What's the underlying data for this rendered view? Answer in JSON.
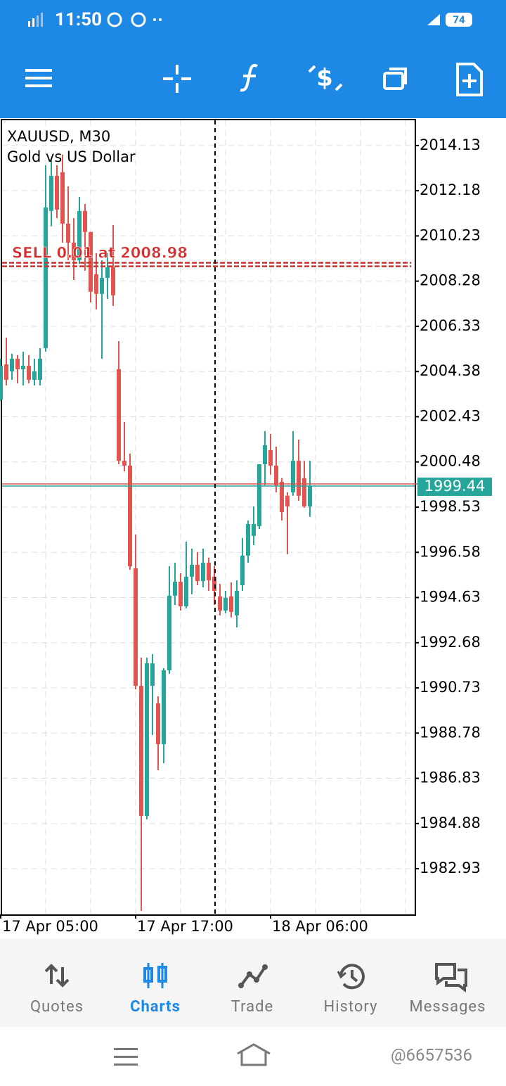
{
  "status_bar": {
    "time": "11:50",
    "battery": "74"
  },
  "chart_data": {
    "type": "candlestick",
    "title": "XAUUSD, M30",
    "subtitle": "Gold vs US Dollar",
    "categories": [
      "17 Apr 05:00",
      null,
      null,
      null,
      null,
      null,
      null,
      null,
      null,
      null,
      null,
      null,
      null,
      null,
      null,
      null,
      null,
      null,
      null,
      null,
      null,
      null,
      null,
      null,
      "17 Apr 17:00",
      null,
      null,
      null,
      null,
      null,
      null,
      null,
      null,
      null,
      null,
      null,
      null,
      null,
      null,
      null,
      null,
      null,
      null,
      null,
      null,
      null,
      null,
      null,
      "18 Apr 06:00",
      null,
      null,
      null,
      null,
      null,
      null,
      null
    ],
    "open": [
      2003.17,
      2004.69,
      2004.39,
      2004.93,
      2004.48,
      2004.63,
      2004.02,
      2004.02,
      2005.39,
      2011.31,
      2012.82,
      2012.98,
      2010.76,
      2009.94,
      2009.18,
      2011.31,
      2010.4,
      2008.58,
      2007.73,
      2008.42,
      2008.88,
      2004.48,
      2000.53,
      2000.32,
      1995.89,
      1990.82,
      1985.21,
      1990.82,
      1990.06,
      1988.3,
      1991.49,
      1994.71,
      1995.31,
      1994.25,
      1995.53,
      1996.04,
      1995.34,
      1996.13,
      1995.53,
      1994.68,
      1994.07,
      1994.68,
      1993.86,
      1995.16,
      1996.44,
      1997.29,
      1997.71,
      2000.38,
      2000.99,
      2000.32,
      1999.62,
      1999.02,
      1999.17,
      2000.53,
      1999.78,
      1998.56
    ],
    "high": [
      2004.93,
      2005.84,
      2005.15,
      2005.09,
      2005.24,
      2005.09,
      2004.93,
      2005.39,
      2013.28,
      2013.49,
      2013.28,
      2013.74,
      2012.37,
      2011.0,
      2011.91,
      2011.61,
      2010.4,
      2009.49,
      2009.18,
      2009.49,
      2010.7,
      2005.69,
      2002.2,
      2000.84,
      1997.35,
      1992.04,
      1992.04,
      1992.19,
      1990.37,
      1991.58,
      1995.98,
      1996.13,
      1995.68,
      1997.04,
      1996.74,
      1996.59,
      1996.74,
      1996.35,
      1995.98,
      1995.22,
      1994.92,
      1995.28,
      1995.37,
      1997.2,
      1997.95,
      1998.56,
      2000.38,
      2001.81,
      2001.69,
      2001.14,
      1999.78,
      1999.17,
      2001.81,
      2001.44,
      2000.53,
      2000.53
    ],
    "low": [
      2003.11,
      2003.78,
      2004.02,
      2003.87,
      2003.78,
      2003.87,
      2003.78,
      2003.78,
      2005.24,
      2010.64,
      2011.0,
      2009.94,
      2009.18,
      2008.33,
      2009.03,
      2008.73,
      2007.36,
      2007.06,
      2004.93,
      2007.51,
      2007.21,
      2000.38,
      2000.08,
      1995.83,
      1990.67,
      1981.11,
      1985.06,
      1988.7,
      1987.18,
      1987.48,
      1991.34,
      1994.31,
      1994.07,
      1994.16,
      1994.77,
      1995.16,
      1995.07,
      1994.92,
      1994.31,
      1993.86,
      1993.95,
      1993.77,
      1993.34,
      1994.92,
      1996.13,
      1996.89,
      1997.59,
      1999.47,
      1999.93,
      1999.17,
      1997.95,
      1996.5,
      1999.02,
      1998.8,
      1998.5,
      1998.11
    ],
    "close": [
      2004.63,
      2004.02,
      2004.93,
      2004.48,
      2004.63,
      2004.02,
      2004.39,
      2004.93,
      2011.46,
      2012.82,
      2011.37,
      2010.76,
      2009.94,
      2009.18,
      2011.31,
      2010.4,
      2007.82,
      2007.73,
      2008.42,
      2008.88,
      2007.67,
      2000.53,
      2000.32,
      1995.98,
      1990.82,
      1985.21,
      1991.79,
      1991.79,
      1988.3,
      1991.49,
      1994.71,
      1995.31,
      1994.25,
      1995.53,
      1996.04,
      1995.34,
      1996.13,
      1995.37,
      1994.92,
      1994.07,
      1994.62,
      1994.01,
      1994.92,
      1996.44,
      1997.8,
      1997.8,
      2000.38,
      2001.2,
      2000.32,
      1999.47,
      1998.32,
      1998.56,
      2000.53,
      1999.02,
      1998.56,
      1999.44
    ],
    "up_color": "#26a69a",
    "down_color": "#e0554f",
    "ylim": [
      1980.96,
      2015.25
    ],
    "yticks": [
      2014.13,
      2012.18,
      2010.23,
      2008.28,
      2006.33,
      2004.38,
      2002.43,
      2000.48,
      1998.53,
      1996.58,
      1994.63,
      1992.68,
      1990.73,
      1988.78,
      1986.83,
      1984.88,
      1982.93
    ],
    "grid": true,
    "order_line": {
      "label": "SELL 0.01 at 2008.98",
      "value": 2008.98,
      "color": "#d32f2f"
    },
    "last_price": 1999.44
  },
  "nav": {
    "tabs": [
      "Quotes",
      "Charts",
      "Trade",
      "History",
      "Messages"
    ]
  },
  "watermark": "@6657536"
}
